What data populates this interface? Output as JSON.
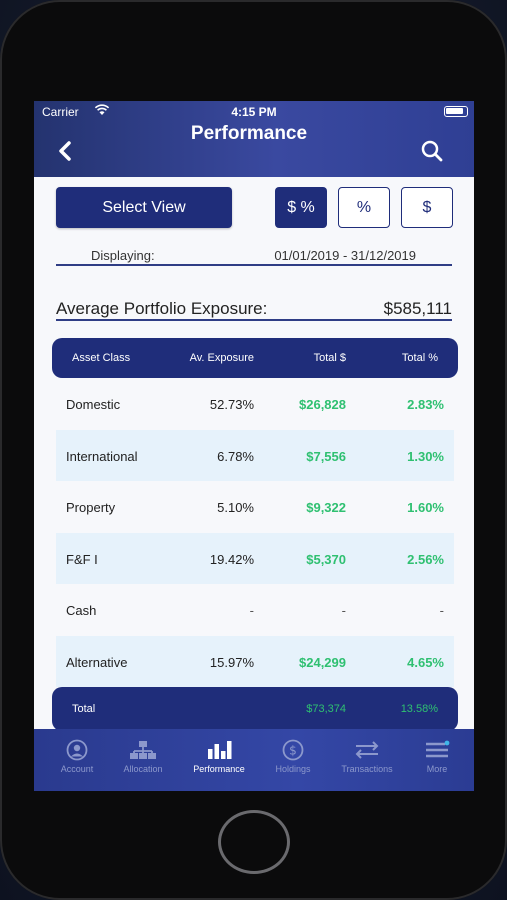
{
  "status_bar": {
    "carrier": "Carrier",
    "time": "4:15 PM"
  },
  "header": {
    "title": "Performance",
    "back_icon": "chevron-left-icon",
    "search_icon": "search-icon"
  },
  "controls": {
    "select_view": "Select View",
    "toggles": [
      {
        "label": "$ %",
        "active": true
      },
      {
        "label": "%",
        "active": false
      },
      {
        "label": "$",
        "active": false
      }
    ]
  },
  "displaying": {
    "label": "Displaying:",
    "range": "01/01/2019 - 31/12/2019"
  },
  "exposure": {
    "label": "Average Portfolio Exposure:",
    "value": "$585,111"
  },
  "table": {
    "headers": [
      "Asset Class",
      "Av. Exposure",
      "Total $",
      "Total %"
    ],
    "rows": [
      [
        "Domestic",
        "52.73%",
        "$26,828",
        "2.83%"
      ],
      [
        "International",
        "6.78%",
        "$7,556",
        "1.30%"
      ],
      [
        "Property",
        "5.10%",
        "$9,322",
        "1.60%"
      ],
      [
        "F&F I",
        "19.42%",
        "$5,370",
        "2.56%"
      ],
      [
        "Cash",
        "-",
        "-",
        "-"
      ],
      [
        "Alternative",
        "15.97%",
        "$24,299",
        "4.65%"
      ]
    ],
    "total": {
      "label": "Total",
      "total_dollar": "$73,374",
      "total_pct": "13.58%"
    }
  },
  "tabbar": [
    {
      "label": "Account",
      "icon": "account-icon",
      "active": false
    },
    {
      "label": "Allocation",
      "icon": "allocation-icon",
      "active": false
    },
    {
      "label": "Performance",
      "icon": "performance-icon",
      "active": true
    },
    {
      "label": "Holdings",
      "icon": "holdings-icon",
      "active": false
    },
    {
      "label": "Transactions",
      "icon": "transactions-icon",
      "active": false
    },
    {
      "label": "More",
      "icon": "more-icon",
      "active": false
    }
  ],
  "colors": {
    "primary": "#1f2d7a",
    "positive": "#2fc071",
    "row_alt": "#e6f2fb"
  }
}
